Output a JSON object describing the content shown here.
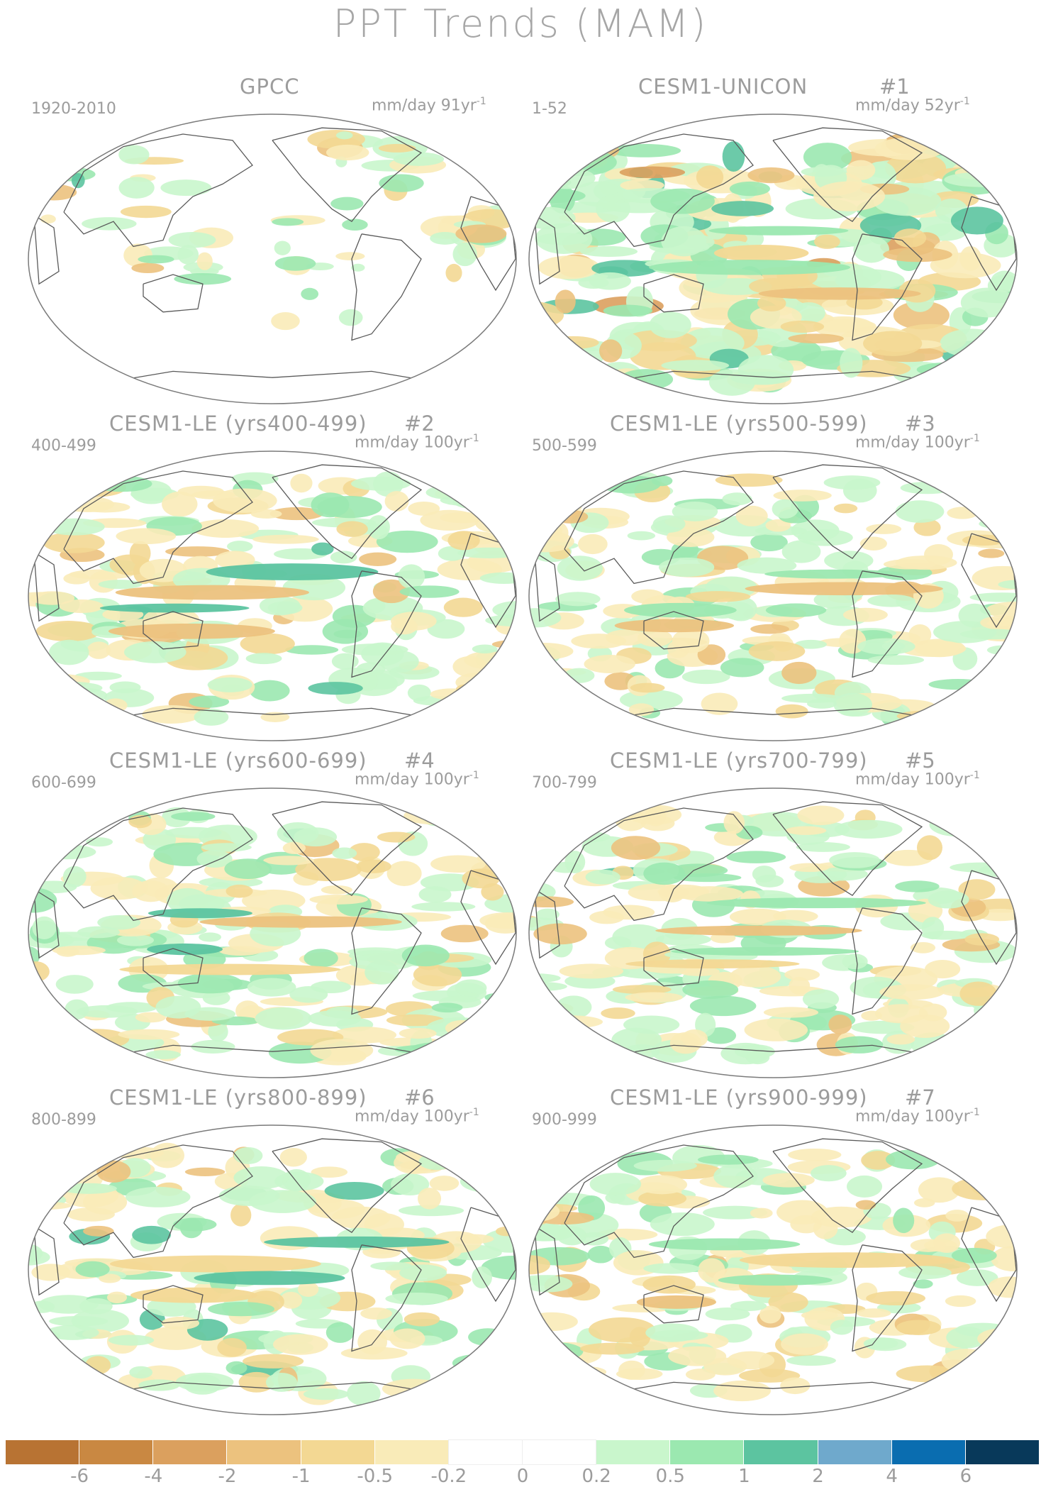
{
  "title": "PPT Trends (MAM)",
  "panels": [
    {
      "title": "GPCC",
      "number": "",
      "years": "1920-2010",
      "units_prefix": "mm/day 91yr",
      "units_exp": "-1",
      "style": "obs"
    },
    {
      "title": "CESM1-UNICON",
      "number": "#1",
      "years": "1-52",
      "units_prefix": "mm/day 52yr",
      "units_exp": "-1",
      "style": "strong"
    },
    {
      "title": "CESM1-LE (yrs400-499)",
      "number": "#2",
      "years": "400-499",
      "units_prefix": "mm/day 100yr",
      "units_exp": "-1",
      "style": "a"
    },
    {
      "title": "CESM1-LE (yrs500-599)",
      "number": "#3",
      "years": "500-599",
      "units_prefix": "mm/day 100yr",
      "units_exp": "-1",
      "style": "b"
    },
    {
      "title": "CESM1-LE (yrs600-699)",
      "number": "#4",
      "years": "600-699",
      "units_prefix": "mm/day 100yr",
      "units_exp": "-1",
      "style": "c"
    },
    {
      "title": "CESM1-LE (yrs700-799)",
      "number": "#5",
      "years": "700-799",
      "units_prefix": "mm/day 100yr",
      "units_exp": "-1",
      "style": "d"
    },
    {
      "title": "CESM1-LE (yrs800-899)",
      "number": "#6",
      "years": "800-899",
      "units_prefix": "mm/day 100yr",
      "units_exp": "-1",
      "style": "e"
    },
    {
      "title": "CESM1-LE (yrs900-999)",
      "number": "#7",
      "years": "900-999",
      "units_prefix": "mm/day 100yr",
      "units_exp": "-1",
      "style": "f"
    }
  ],
  "colorbar": {
    "colors": [
      "#b87333",
      "#c98842",
      "#dba05e",
      "#ecc27e",
      "#f3d893",
      "#f9ebb8",
      "#ffffff",
      "#ffffff",
      "#c9f6cc",
      "#9be8b0",
      "#5cc4a0",
      "#6fa9cc",
      "#0a6db0",
      "#08395a"
    ],
    "labels": [
      "-6",
      "-4",
      "-2",
      "-1",
      "-0.5",
      "-0.2",
      "0",
      "0.2",
      "0.5",
      "1",
      "2",
      "4",
      "6"
    ]
  },
  "chart_data": {
    "type": "heatmap",
    "title": "PPT Trends (MAM)",
    "levels": [
      -6,
      -4,
      -2,
      -1,
      -0.5,
      -0.2,
      0,
      0.2,
      0.5,
      1,
      2,
      4,
      6
    ],
    "panels": [
      "GPCC",
      "CESM1-UNICON",
      "CESM1-LE (yrs400-499)",
      "CESM1-LE (yrs500-599)",
      "CESM1-LE (yrs600-699)",
      "CESM1-LE (yrs700-799)",
      "CESM1-LE (yrs800-899)",
      "CESM1-LE (yrs900-999)"
    ]
  }
}
